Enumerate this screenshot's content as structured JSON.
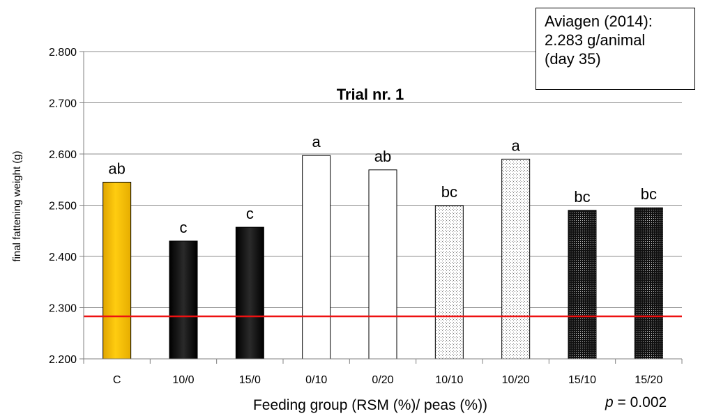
{
  "chart_data": {
    "type": "bar",
    "title": "Trial nr. 1",
    "xlabel": "Feeding group (RSM (%)/ peas (%))",
    "ylabel": "final fattening weight (g)",
    "ylim": [
      2.2,
      2.8
    ],
    "yticks": [
      "2.200",
      "2.300",
      "2.400",
      "2.500",
      "2.600",
      "2.700",
      "2.800"
    ],
    "grid": true,
    "categories": [
      "C",
      "10/0",
      "15/0",
      "0/10",
      "0/20",
      "10/10",
      "10/20",
      "15/10",
      "15/20"
    ],
    "values": [
      2.545,
      2.43,
      2.457,
      2.597,
      2.569,
      2.499,
      2.59,
      2.49,
      2.495
    ],
    "letters": [
      "ab",
      "c",
      "c",
      "a",
      "ab",
      "bc",
      "a",
      "bc",
      "bc"
    ],
    "fills": [
      "yellow",
      "black",
      "black",
      "white",
      "white",
      "light-dotted",
      "light-dotted",
      "dark-dotted",
      "dark-dotted"
    ],
    "reference_line": {
      "value": 2.283,
      "color": "#ee1111"
    },
    "colors": {
      "yellow": "#ffc000",
      "black": "#000000",
      "reference": "#ee1111"
    }
  },
  "annotation": {
    "lines": [
      "Aviagen (2014):",
      "2.283 g/animal",
      "(day 35)"
    ]
  },
  "p_value": {
    "symbol": "p",
    "text": " = 0.002"
  }
}
